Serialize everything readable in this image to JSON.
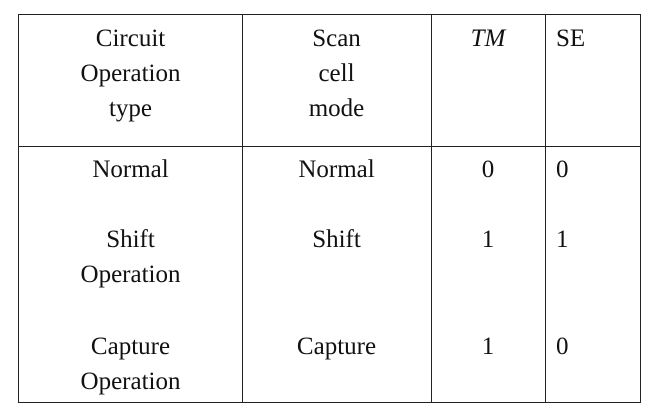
{
  "table": {
    "headers": {
      "circuit_operation_type": "Circuit\nOperation\ntype",
      "scan_cell_mode": "Scan\ncell\nmode",
      "tm": "TM",
      "se": "SE"
    },
    "rows": [
      {
        "circuit_operation_type": "Normal",
        "scan_cell_mode": "Normal",
        "tm": "0",
        "se": "0"
      },
      {
        "circuit_operation_type": "Shift\nOperation",
        "scan_cell_mode": "Shift",
        "tm": "1",
        "se": "1"
      },
      {
        "circuit_operation_type": "Capture\nOperation",
        "scan_cell_mode": "Capture",
        "tm": "1",
        "se": "0"
      }
    ]
  }
}
